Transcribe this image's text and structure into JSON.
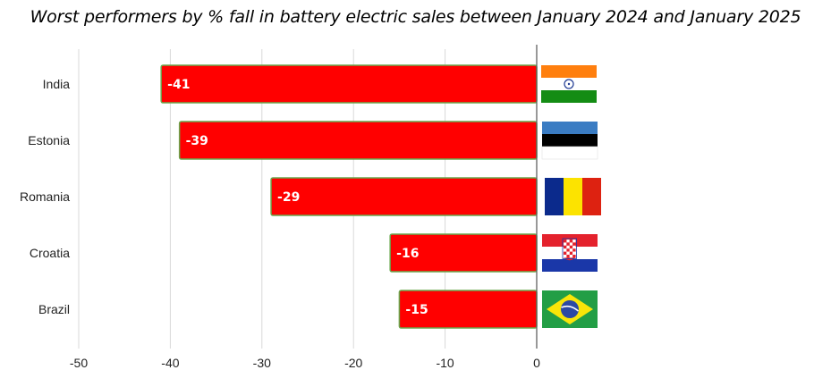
{
  "title": "Worst performers by % fall in battery electric sales between January 2024 and January 2025",
  "chart_data": {
    "type": "bar",
    "orientation": "horizontal",
    "title": "Worst performers by % fall in battery electric sales between January 2024 and January 2025",
    "categories": [
      "India",
      "Estonia",
      "Romania",
      "Croatia",
      "Brazil"
    ],
    "values": [
      -41,
      -39,
      -29,
      -16,
      -15
    ],
    "data_labels": [
      "-41",
      "-39",
      "-29",
      "-16",
      "-15"
    ],
    "xlim": [
      -50,
      0
    ],
    "x_ticks": [
      -50,
      -40,
      -30,
      -20,
      -10,
      0
    ],
    "x_tick_labels": [
      "-50",
      "-40",
      "-30",
      "-20",
      "-10",
      "0"
    ],
    "grid": true,
    "bar_color": "#ff0000",
    "bar_border_color": "#6aa84f",
    "flags": [
      "india-flag",
      "estonia-flag",
      "romania-flag",
      "croatia-flag",
      "brazil-flag"
    ]
  }
}
